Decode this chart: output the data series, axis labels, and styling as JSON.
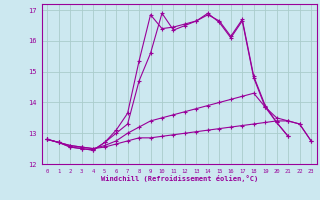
{
  "background_color": "#cce8f0",
  "grid_color": "#aacccc",
  "line_color": "#990099",
  "xlim": [
    -0.5,
    23.5
  ],
  "ylim": [
    12,
    17.2
  ],
  "yticks": [
    12,
    13,
    14,
    15,
    16,
    17
  ],
  "xticks": [
    0,
    1,
    2,
    3,
    4,
    5,
    6,
    7,
    8,
    9,
    10,
    11,
    12,
    13,
    14,
    15,
    16,
    17,
    18,
    19,
    20,
    21,
    22,
    23
  ],
  "xlabel": "Windchill (Refroidissement éolien,°C)",
  "series": [
    {
      "x": [
        0,
        1,
        2,
        3,
        4,
        5,
        6,
        7,
        8,
        9,
        10,
        11,
        12,
        13,
        14,
        15,
        16,
        17,
        18,
        19,
        20,
        21,
        22,
        23
      ],
      "y": [
        12.8,
        12.7,
        12.6,
        12.55,
        12.5,
        12.55,
        12.65,
        12.75,
        12.85,
        12.85,
        12.9,
        12.95,
        13.0,
        13.05,
        13.1,
        13.15,
        13.2,
        13.25,
        13.3,
        13.35,
        13.4,
        13.4,
        13.3,
        12.75
      ]
    },
    {
      "x": [
        0,
        1,
        2,
        3,
        4,
        5,
        6,
        7,
        8,
        9,
        10,
        11,
        12,
        13,
        14,
        15,
        16,
        17,
        18,
        19,
        20,
        21,
        22,
        23
      ],
      "y": [
        12.8,
        12.7,
        12.6,
        12.55,
        12.5,
        12.6,
        12.75,
        13.0,
        13.2,
        13.4,
        13.5,
        13.6,
        13.7,
        13.8,
        13.9,
        14.0,
        14.1,
        14.2,
        14.3,
        13.85,
        13.5,
        13.4,
        13.3,
        12.75
      ]
    },
    {
      "x": [
        0,
        1,
        2,
        3,
        4,
        5,
        6,
        7,
        8,
        9,
        10,
        11,
        12,
        13,
        14,
        15,
        16,
        17,
        18,
        19,
        20,
        21,
        22,
        23
      ],
      "y": [
        12.8,
        12.7,
        12.55,
        12.5,
        12.45,
        12.7,
        13.0,
        13.3,
        14.7,
        15.6,
        16.9,
        16.35,
        16.5,
        16.65,
        16.9,
        16.6,
        16.1,
        16.65,
        14.8,
        13.85,
        13.35,
        12.9,
        null,
        null
      ]
    },
    {
      "x": [
        0,
        1,
        2,
        3,
        4,
        5,
        6,
        7,
        8,
        9,
        10,
        11,
        12,
        13,
        14,
        15,
        16,
        17,
        18,
        19,
        20,
        21,
        22,
        23
      ],
      "y": [
        12.8,
        12.7,
        12.55,
        12.5,
        12.45,
        12.7,
        13.1,
        13.65,
        15.35,
        16.85,
        16.4,
        16.45,
        16.55,
        16.65,
        16.85,
        16.65,
        16.15,
        16.7,
        14.85,
        13.9,
        13.35,
        12.9,
        null,
        null
      ]
    }
  ]
}
